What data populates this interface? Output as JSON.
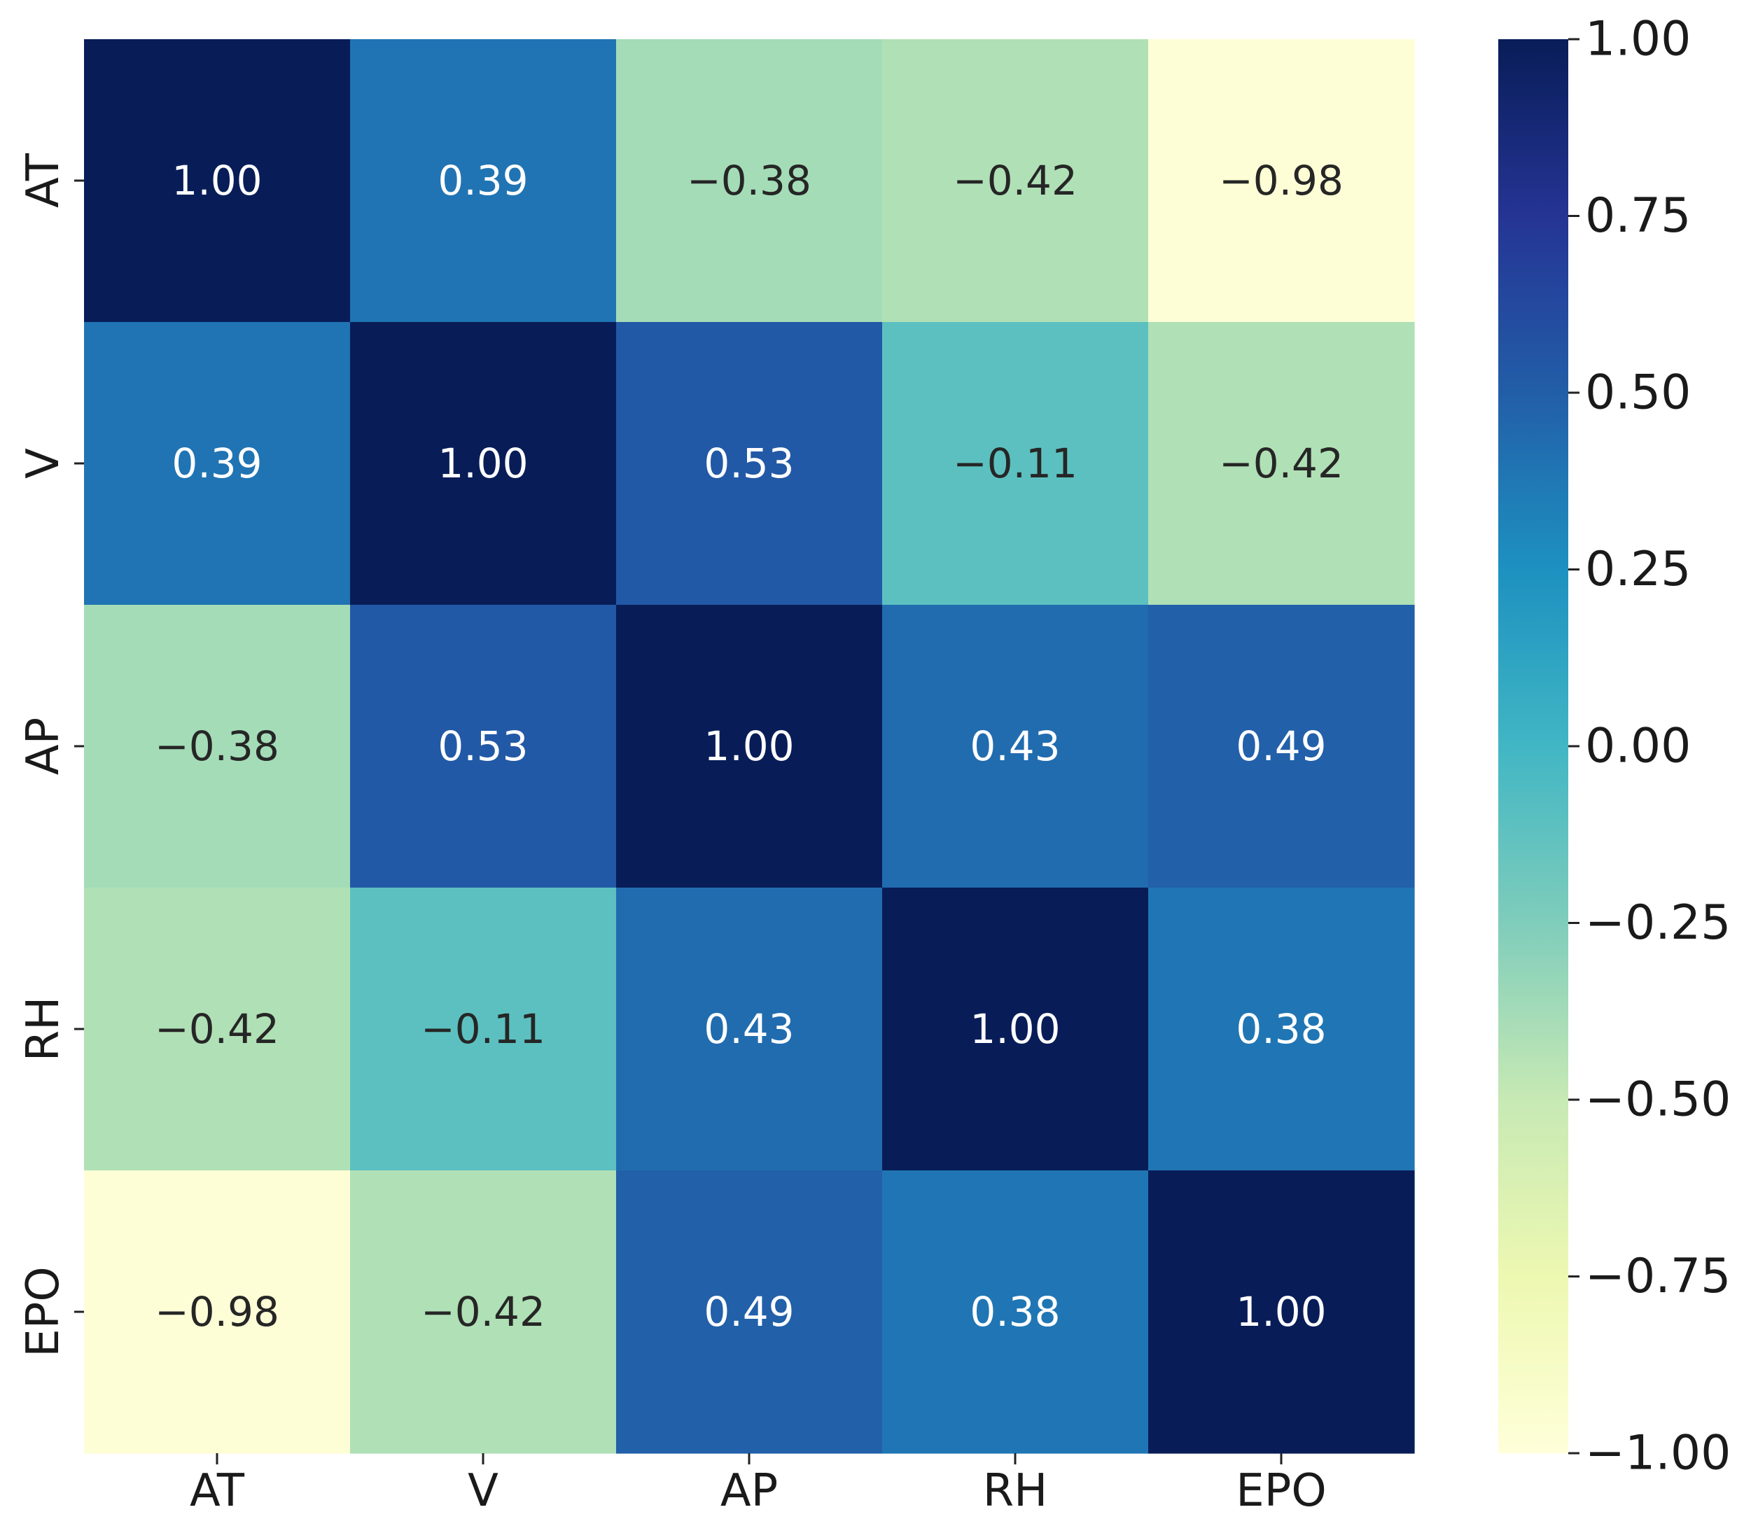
{
  "chart_data": {
    "type": "heatmap",
    "title": "",
    "xlabel": "",
    "ylabel": "",
    "x_categories": [
      "AT",
      "V",
      "AP",
      "RH",
      "EPO"
    ],
    "y_categories": [
      "AT",
      "V",
      "AP",
      "RH",
      "EPO"
    ],
    "matrix": [
      [
        1.0,
        0.39,
        -0.38,
        -0.42,
        -0.98
      ],
      [
        0.39,
        1.0,
        0.53,
        -0.11,
        -0.42
      ],
      [
        -0.38,
        0.53,
        1.0,
        0.43,
        0.49
      ],
      [
        -0.42,
        -0.11,
        0.43,
        1.0,
        0.38
      ],
      [
        -0.98,
        -0.42,
        0.49,
        0.38,
        1.0
      ]
    ],
    "cell_labels": [
      [
        "1.00",
        "0.39",
        "−0.38",
        "−0.42",
        "−0.98"
      ],
      [
        "0.39",
        "1.00",
        "0.53",
        "−0.11",
        "−0.42"
      ],
      [
        "−0.38",
        "0.53",
        "1.00",
        "0.43",
        "0.49"
      ],
      [
        "−0.42",
        "−0.11",
        "0.43",
        "1.00",
        "0.38"
      ],
      [
        "−0.98",
        "−0.42",
        "0.49",
        "0.38",
        "1.00"
      ]
    ],
    "colormap": "YlGnBu",
    "vmin": -1.0,
    "vmax": 1.0,
    "colorbar": {
      "ticks": [
        1.0,
        0.75,
        0.5,
        0.25,
        0.0,
        -0.25,
        -0.5,
        -0.75,
        -1.0
      ],
      "tick_labels": [
        "1.00",
        "0.75",
        "0.50",
        "0.25",
        "0.00",
        "−0.25",
        "−0.50",
        "−0.75",
        "−1.00"
      ]
    },
    "colormap_stops": [
      "#ffffd9",
      "#edf8b1",
      "#c7e9b4",
      "#7fcdbb",
      "#41b6c4",
      "#1d91c0",
      "#225ea8",
      "#253494",
      "#081d58"
    ],
    "label_colors": {
      "dark_text": "#262626",
      "light_text": "#ffffff"
    }
  }
}
